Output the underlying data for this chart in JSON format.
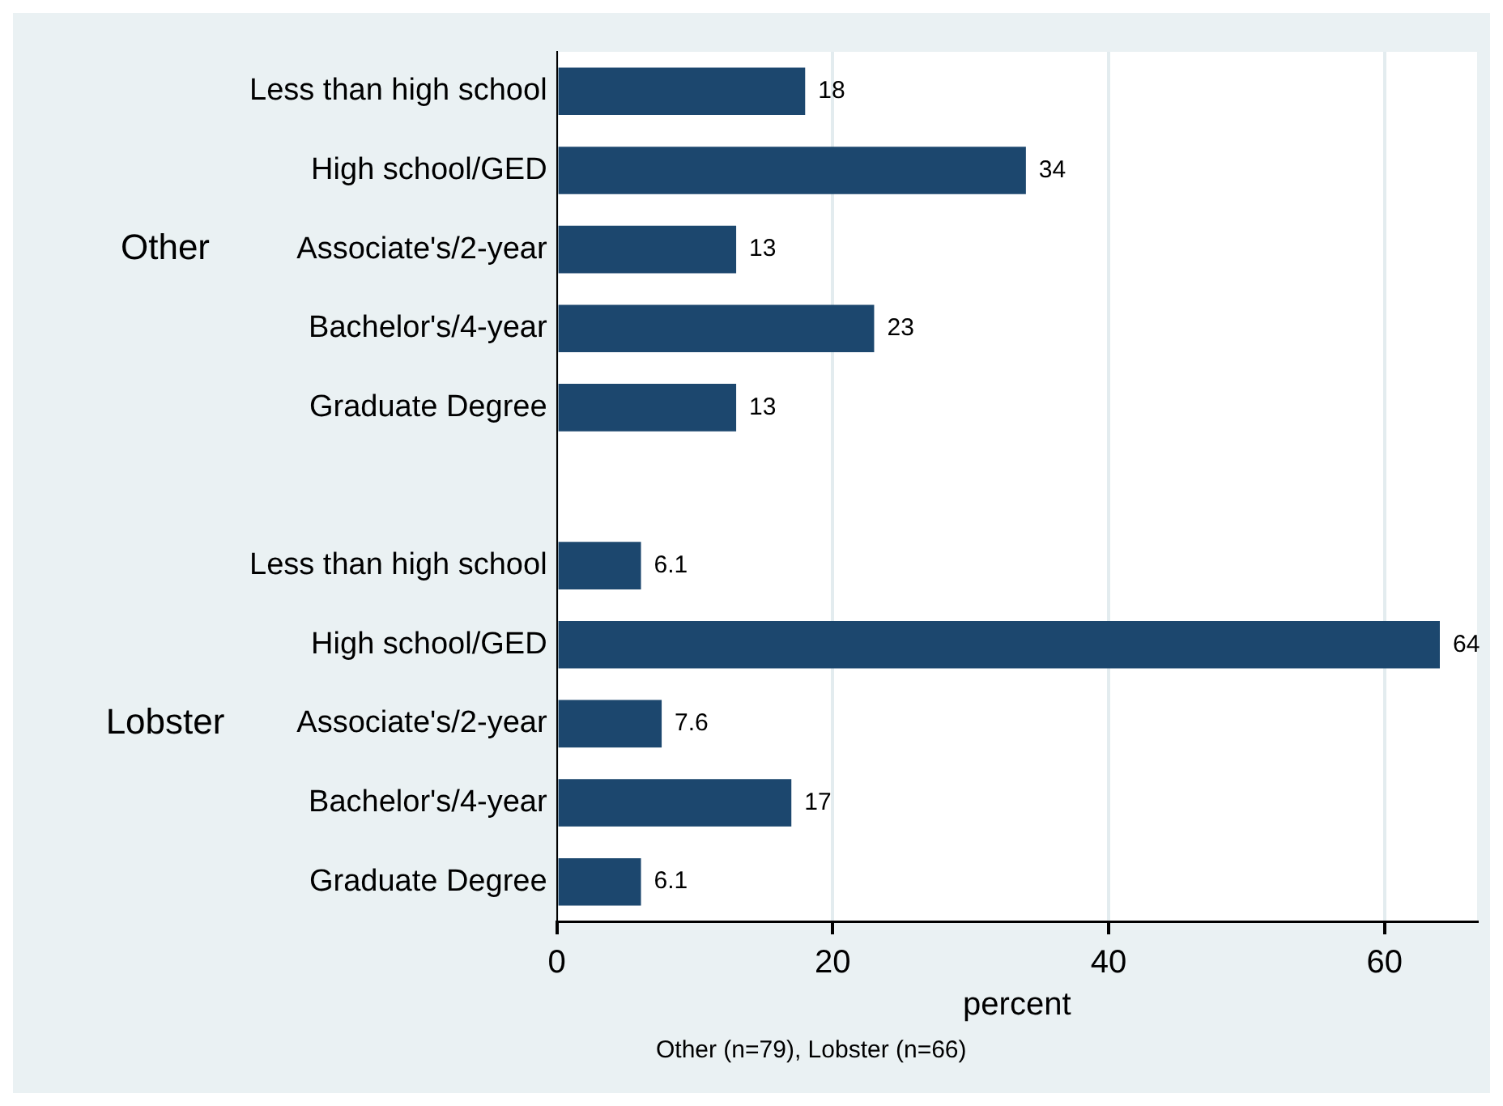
{
  "chart_data": {
    "type": "bar",
    "orientation": "horizontal",
    "categories": [
      "Less than high school",
      "High school/GED",
      "Associate's/2-year",
      "Bachelor's/4-year",
      "Graduate Degree",
      null,
      "Less than high school",
      "High school/GED",
      "Associate's/2-year",
      "Bachelor's/4-year",
      "Graduate Degree"
    ],
    "values": [
      18,
      34,
      13,
      23,
      13,
      null,
      6.1,
      64,
      7.6,
      17,
      6.1
    ],
    "color": "#1c476e",
    "data_labels": true,
    "xlabel": "percent",
    "xlim": [
      0,
      66.7
    ],
    "xticks": [
      0,
      20,
      40,
      60
    ],
    "grid": "x",
    "legend": false,
    "annotations": [
      "Other",
      "Lobster",
      "Other (n=79), Lobster (n=66)"
    ]
  }
}
